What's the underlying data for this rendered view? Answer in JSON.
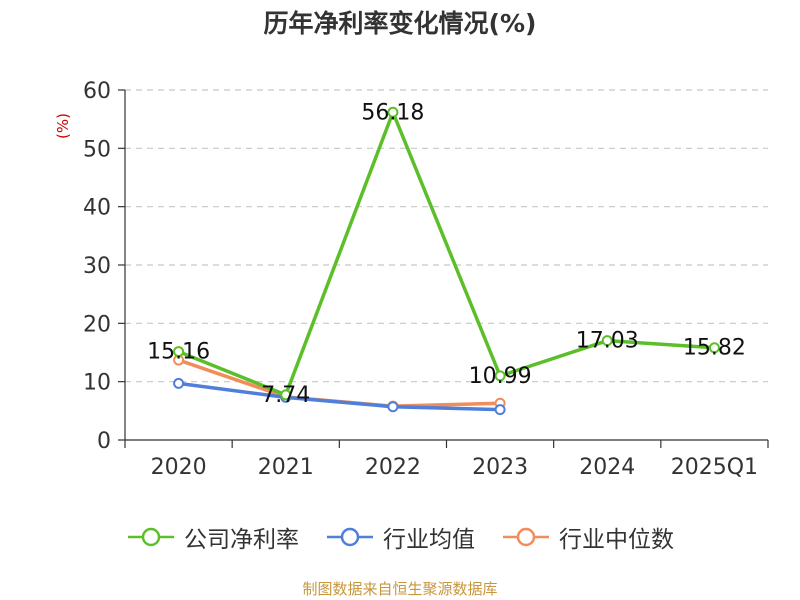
{
  "chart_data": {
    "type": "line",
    "title": "历年净利率变化情况(%)",
    "ylabel": "(%)",
    "xlabel": "",
    "categories": [
      "2020",
      "2021",
      "2022",
      "2023",
      "2024",
      "2025Q1"
    ],
    "ylim": [
      0,
      60
    ],
    "yticks": [
      0,
      10,
      20,
      30,
      40,
      50,
      60
    ],
    "grid": true,
    "legend_position": "bottom",
    "series": [
      {
        "name": "公司净利率",
        "color": "#5cbf2a",
        "values": [
          15.16,
          7.74,
          56.18,
          10.99,
          17.03,
          15.82
        ],
        "labels": [
          "15.16",
          "7.74",
          "56.18",
          "10.99",
          "17.03",
          "15.82"
        ]
      },
      {
        "name": "行业均值",
        "color": "#4f7fdb",
        "values": [
          9.7,
          7.3,
          5.7,
          5.2,
          null,
          null
        ]
      },
      {
        "name": "行业中位数",
        "color": "#f28c5a",
        "values": [
          13.7,
          7.4,
          5.8,
          6.3,
          null,
          null
        ]
      }
    ]
  },
  "source": "制图数据来自恒生聚源数据库"
}
